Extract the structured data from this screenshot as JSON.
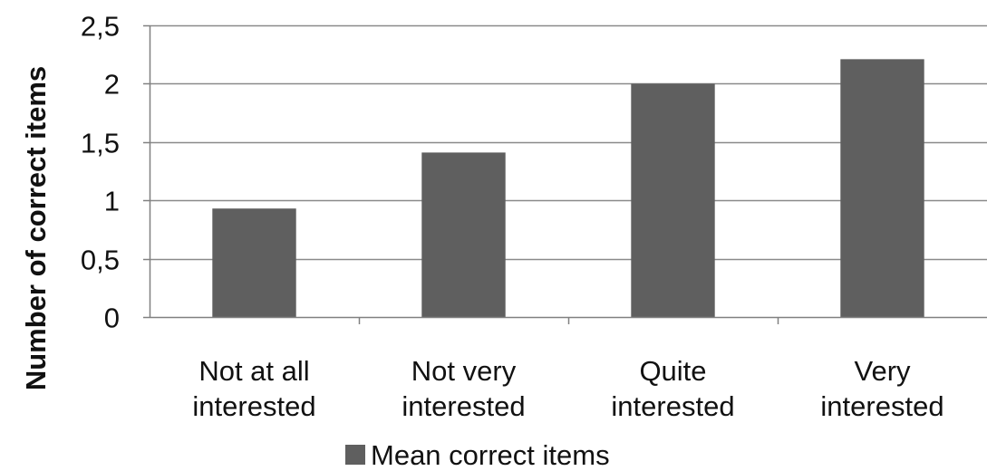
{
  "colors": {
    "bar": "#5f5f5f",
    "gridline": "#8a8a8a",
    "axis": "#808080",
    "text": "#111111",
    "background": "#ffffff"
  },
  "chart_data": {
    "type": "bar",
    "title": "",
    "xlabel": "",
    "ylabel": "Number of correct items",
    "ylim": [
      0,
      2.5
    ],
    "yticks": [
      0,
      0.5,
      1,
      1.5,
      2,
      2.5
    ],
    "ytick_labels": [
      "0",
      "0,5",
      "1",
      "1,5",
      "2",
      "2,5"
    ],
    "grid": true,
    "legend_position": "bottom",
    "categories": [
      [
        "Not at all",
        "interested"
      ],
      [
        "Not very",
        "interested"
      ],
      [
        "Quite",
        "interested"
      ],
      [
        "Very",
        "interested"
      ]
    ],
    "series": [
      {
        "name": "Mean correct items",
        "values": [
          0.93,
          1.41,
          2.0,
          2.21
        ]
      }
    ]
  }
}
